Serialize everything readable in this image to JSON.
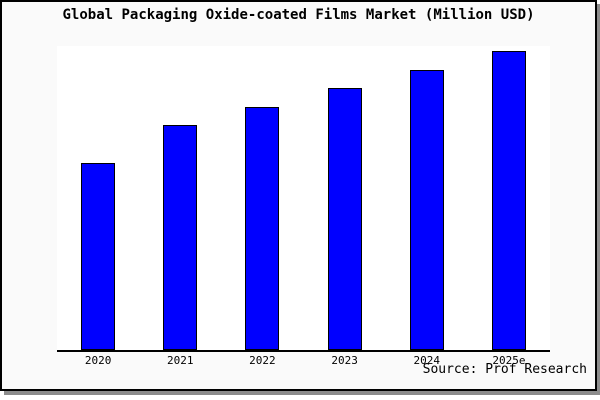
{
  "title": "Global Packaging Oxide-coated Films Market (Million USD)",
  "source": "Source: Prof Research",
  "chart_data": {
    "type": "bar",
    "title": "Global Packaging Oxide-coated Films Market (Million USD)",
    "categories": [
      "2020",
      "2021",
      "2022",
      "2023",
      "2024",
      "2025e"
    ],
    "values": [
      188,
      226,
      244,
      263,
      281,
      300
    ],
    "value_note": "y-axis has no tick labels or gridlines; values are relative units estimated from bar heights (pixels above baseline)",
    "xlabel": "",
    "ylabel": "",
    "ylim": [
      0,
      305
    ],
    "grid": false,
    "legend": false,
    "annotations": [
      "Source: Prof Research"
    ]
  },
  "colors": {
    "bar_fill": "#0000ff",
    "bar_edge": "#000000",
    "figure_background": "#fafafa",
    "plot_background": "#ffffff",
    "border": "#000000",
    "shadow": "#8c8c8c",
    "text": "#000000"
  }
}
